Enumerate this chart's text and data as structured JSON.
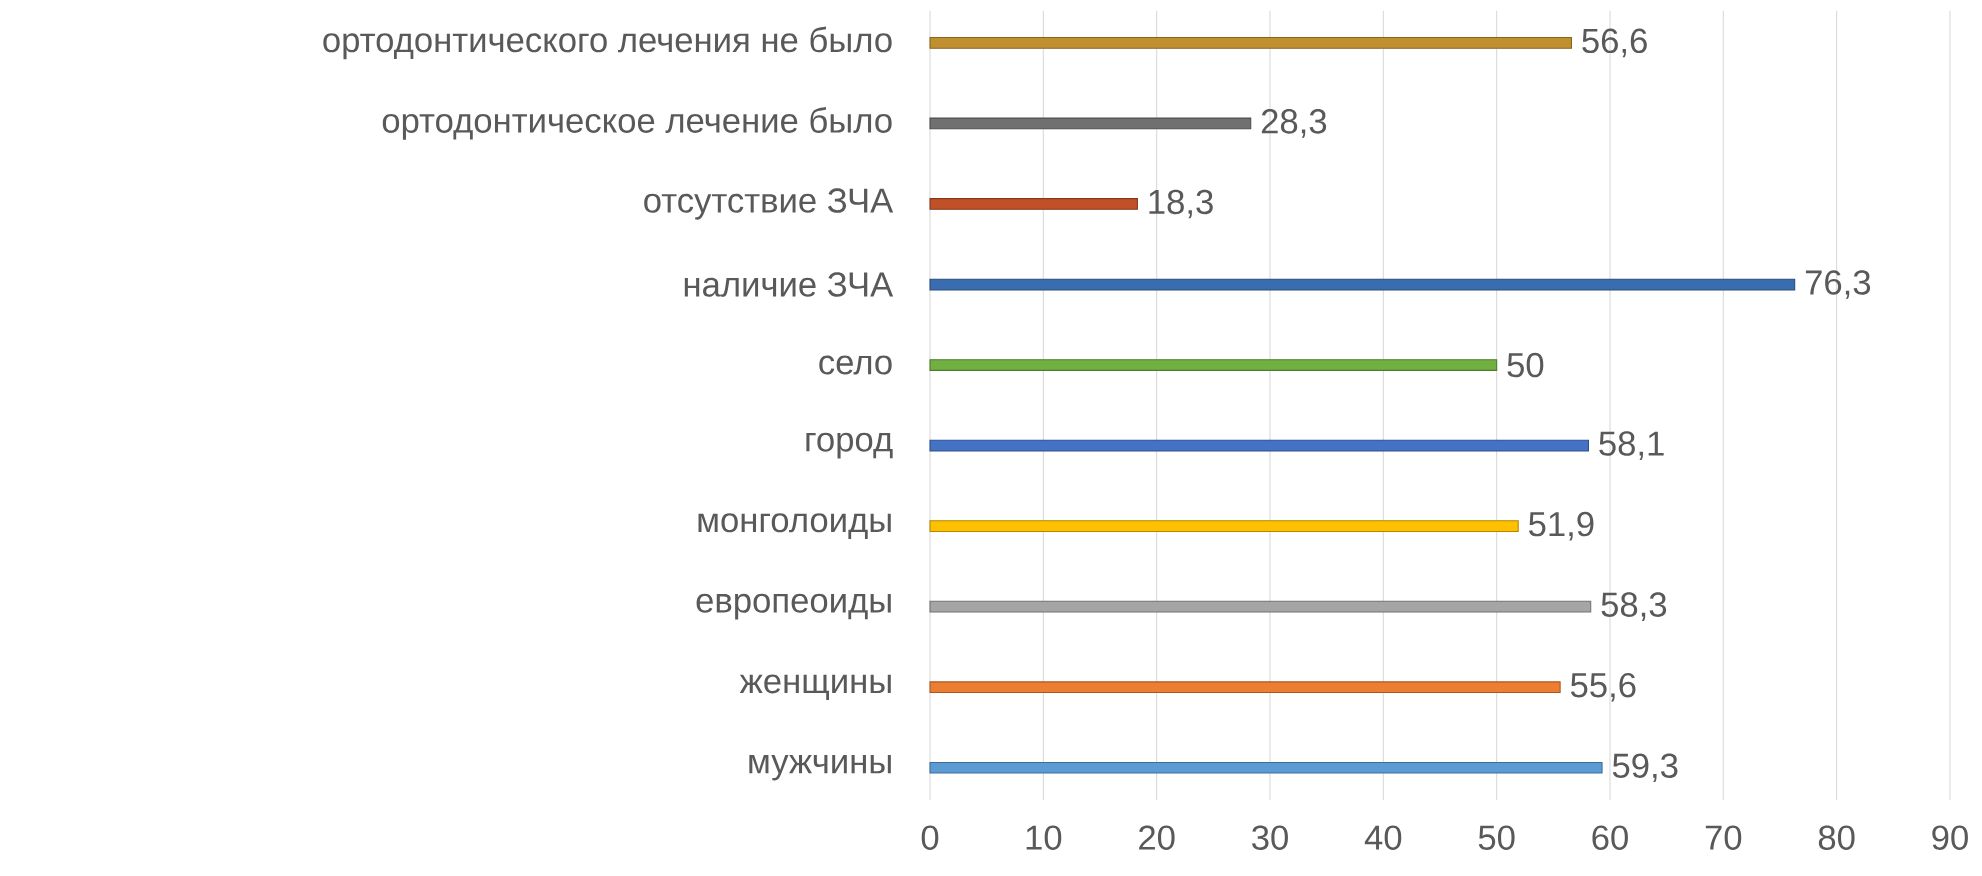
{
  "chart_data": {
    "type": "bar",
    "orientation": "horizontal",
    "categories": [
      "ортодонтического лечения не было",
      "ортодонтическое лечение было",
      "отсутствие ЗЧА",
      "наличие ЗЧА",
      "село",
      "город",
      "монголоиды",
      "европеоиды",
      "женщины",
      "мужчины"
    ],
    "values": [
      56.6,
      28.3,
      18.3,
      76.3,
      50,
      58.1,
      51.9,
      58.3,
      55.6,
      59.3
    ],
    "value_labels": [
      "56,6",
      "28,3",
      "18,3",
      "76,3",
      "50",
      "58,1",
      "51,9",
      "58,3",
      "55,6",
      "59,3"
    ],
    "colors": [
      "#c09030",
      "#707070",
      "#c05028",
      "#3a6db0",
      "#70b040",
      "#4472c4",
      "#ffc000",
      "#a5a5a5",
      "#ed7d31",
      "#5b9bd5"
    ],
    "xlim": [
      0,
      90
    ],
    "xticks": [
      0,
      10,
      20,
      30,
      40,
      50,
      60,
      70,
      80,
      90
    ],
    "grid": "x"
  }
}
